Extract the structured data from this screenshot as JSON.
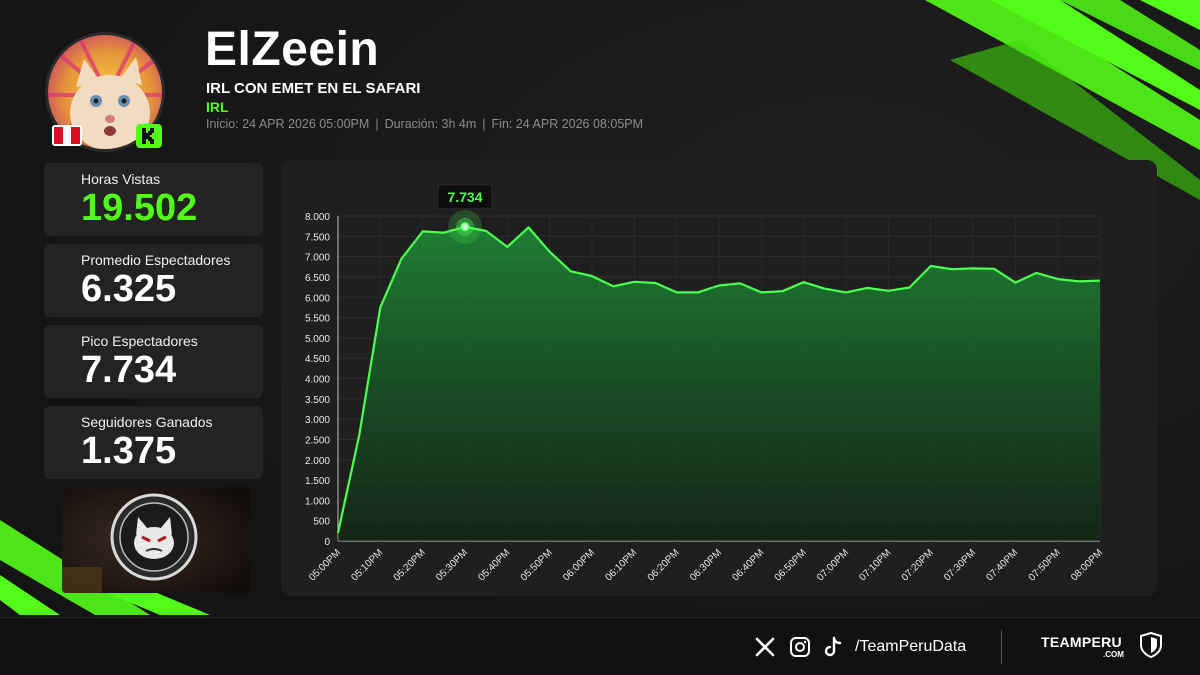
{
  "header": {
    "streamer": "ElZeein",
    "stream_title": "IRL CON EMET EN EL SAFARI",
    "category": "IRL",
    "start": "Inicio: 24 APR 2026 05:00PM",
    "duration": "Duración: 3h 4m",
    "end": "Fin: 24 APR 2026 08:05PM",
    "separator": "|",
    "country_flag": "peru-flag",
    "platform": "kick"
  },
  "stats": [
    {
      "label": "Horas Vistas",
      "value": "19.502"
    },
    {
      "label": "Promedio Espectadores",
      "value": "6.325"
    },
    {
      "label": "Pico Espectadores",
      "value": "7.734"
    },
    {
      "label": "Seguidores Ganados",
      "value": "1.375"
    }
  ],
  "colors": {
    "accent": "#53fc18",
    "line": "#4cff52",
    "background": "#151515",
    "card": "#232323"
  },
  "chart_data": {
    "type": "area",
    "x": [
      "05:00PM",
      "05:05PM",
      "05:10PM",
      "05:15PM",
      "05:20PM",
      "05:25PM",
      "05:30PM",
      "05:35PM",
      "05:40PM",
      "05:45PM",
      "05:50PM",
      "05:55PM",
      "06:00PM",
      "06:05PM",
      "06:10PM",
      "06:15PM",
      "06:20PM",
      "06:25PM",
      "06:30PM",
      "06:35PM",
      "06:40PM",
      "06:45PM",
      "06:50PM",
      "06:55PM",
      "07:00PM",
      "07:05PM",
      "07:10PM",
      "07:15PM",
      "07:20PM",
      "07:25PM",
      "07:30PM",
      "07:35PM",
      "07:40PM",
      "07:45PM",
      "07:50PM",
      "07:55PM",
      "08:00PM"
    ],
    "tick_labels": [
      "05:00PM",
      "05:10PM",
      "05:20PM",
      "05:30PM",
      "05:40PM",
      "05:50PM",
      "06:00PM",
      "06:10PM",
      "06:20PM",
      "06:30PM",
      "06:40PM",
      "06:50PM",
      "07:00PM",
      "07:10PM",
      "07:20PM",
      "07:30PM",
      "07:40PM",
      "07:50PM",
      "08:00PM"
    ],
    "series": [
      {
        "values": [
          200,
          2600,
          5750,
          6950,
          7620,
          7590,
          7734,
          7630,
          7240,
          7720,
          7120,
          6640,
          6520,
          6270,
          6380,
          6350,
          6120,
          6120,
          6290,
          6340,
          6120,
          6150,
          6370,
          6210,
          6120,
          6230,
          6160,
          6240,
          6770,
          6690,
          6710,
          6700,
          6360,
          6600,
          6450,
          6390,
          6410
        ]
      }
    ],
    "peak": {
      "x": "05:30PM",
      "value": 7734,
      "label": "7.734"
    },
    "ylim": [
      0,
      8000
    ],
    "yticks": [
      0,
      500,
      1000,
      1500,
      2000,
      2500,
      3000,
      3500,
      4000,
      4500,
      5000,
      5500,
      6000,
      6500,
      7000,
      7500,
      8000
    ],
    "grid": true,
    "legend": "none",
    "title": "",
    "xlabel": "",
    "ylabel": ""
  },
  "footer": {
    "handle": "/TeamPeruData",
    "brand": "TEAMPERU",
    "brand_sub": ".COM",
    "icons": [
      "x-icon",
      "instagram-icon",
      "tiktok-icon"
    ]
  }
}
